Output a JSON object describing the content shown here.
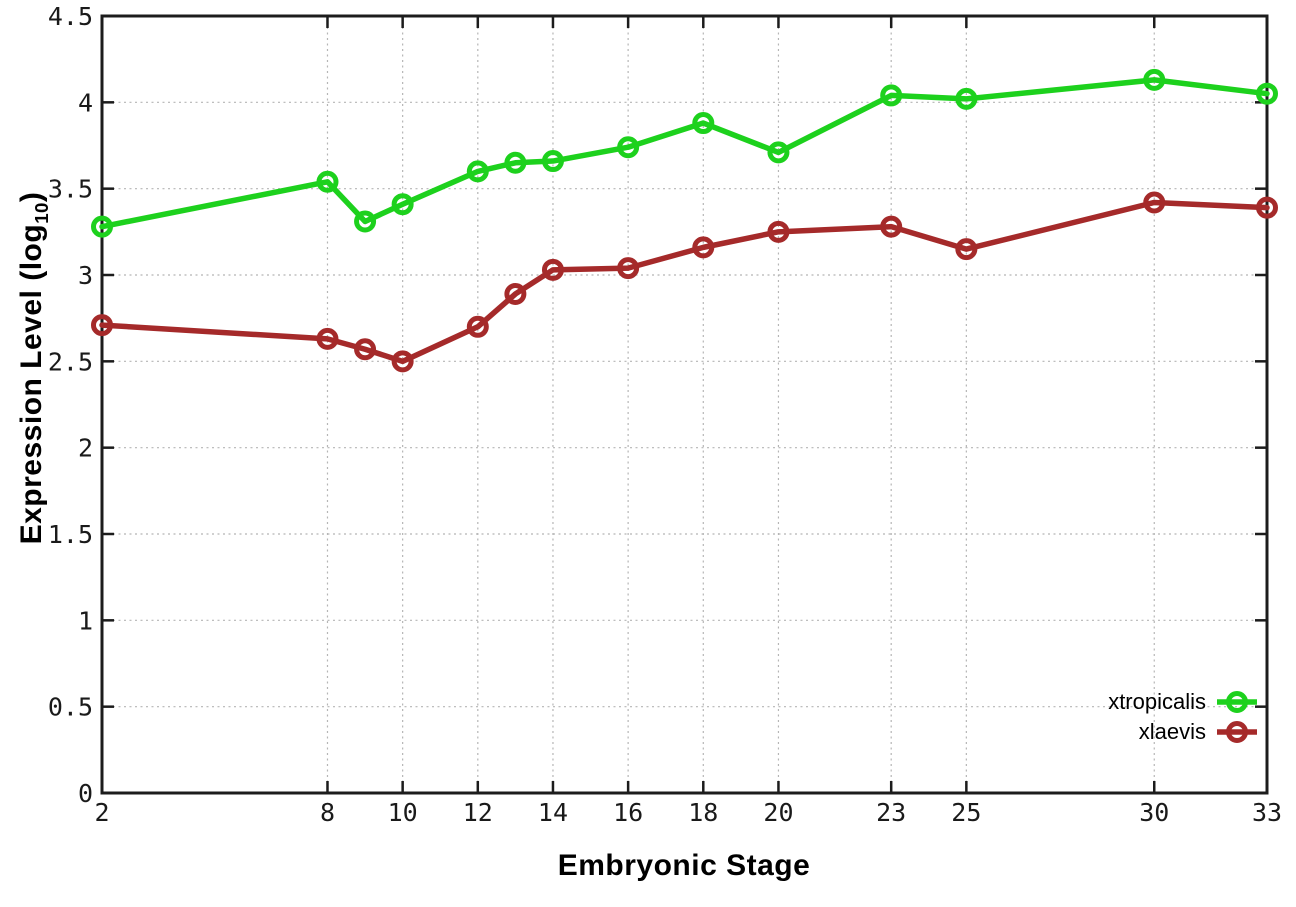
{
  "chart_data": {
    "type": "line",
    "title": "",
    "xlabel": "Embryonic Stage",
    "ylabel": "Expression Level (log10)",
    "ylabel_prefix": "Expression Level (log",
    "ylabel_sub": "10",
    "ylabel_suffix": ")",
    "x": [
      2,
      8,
      9,
      10,
      12,
      13,
      14,
      16,
      18,
      20,
      23,
      25,
      30,
      33
    ],
    "series": [
      {
        "name": "xtropicalis",
        "color": "#1dd11d",
        "values": [
          3.28,
          3.54,
          3.31,
          3.41,
          3.6,
          3.65,
          3.66,
          3.74,
          3.88,
          3.71,
          4.04,
          4.02,
          4.13,
          4.05
        ]
      },
      {
        "name": "xlaevis",
        "color": "#a52a2a",
        "values": [
          2.71,
          2.63,
          2.57,
          2.5,
          2.7,
          2.89,
          3.03,
          3.04,
          3.16,
          3.25,
          3.28,
          3.15,
          3.42,
          3.39
        ]
      }
    ],
    "x_ticks": [
      2,
      8,
      10,
      12,
      14,
      16,
      18,
      20,
      23,
      25,
      30,
      33
    ],
    "x_tick_labels": [
      "2",
      "8",
      "10",
      "12",
      "14",
      "16",
      "18",
      "20",
      "23",
      "25",
      "30",
      "33"
    ],
    "y_ticks": [
      0,
      0.5,
      1,
      1.5,
      2,
      2.5,
      3,
      3.5,
      4,
      4.5
    ],
    "y_tick_labels": [
      "0",
      "0.5",
      "1",
      "1.5",
      "2",
      "2.5",
      "3",
      "3.5",
      "4",
      "4.5"
    ],
    "xlim": [
      2,
      33
    ],
    "ylim": [
      0,
      4.5
    ],
    "grid": true,
    "legend_position": "bottom-right"
  },
  "style": {
    "border_color": "#1c1c1c",
    "grid_color": "#b5b5b5",
    "tick_color": "#1a1a1a",
    "background": "#ffffff"
  }
}
